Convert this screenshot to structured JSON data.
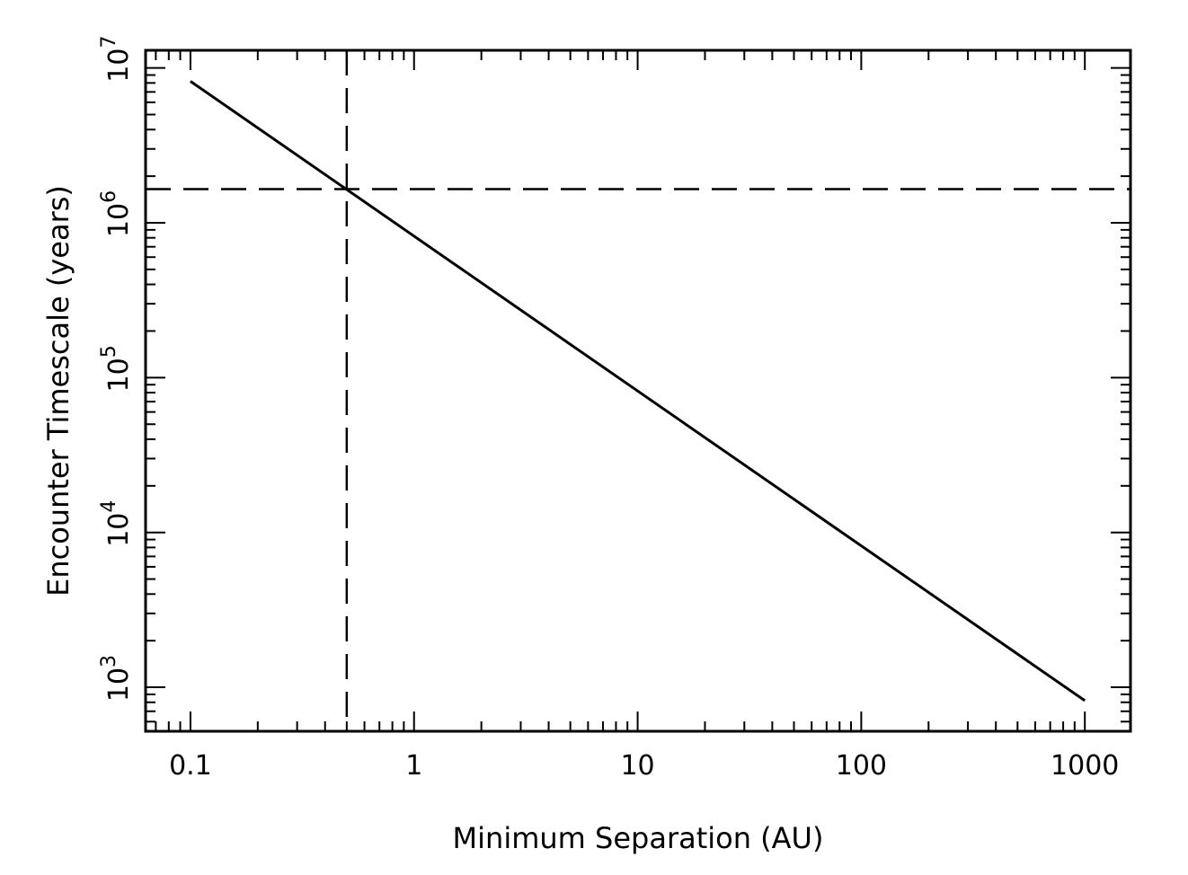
{
  "chart_data": {
    "type": "line",
    "title": "",
    "xlabel": "Minimum Separation (AU)",
    "ylabel": "Encounter Timescale (years)",
    "xscale": "log",
    "yscale": "log",
    "xlim": [
      0.063,
      1600
    ],
    "ylim": [
      520,
      13000000
    ],
    "x_tick_labels": [
      {
        "value": 0.1,
        "label": "0.1"
      },
      {
        "value": 1,
        "label": "1"
      },
      {
        "value": 10,
        "label": "10"
      },
      {
        "value": 100,
        "label": "100"
      },
      {
        "value": 1000,
        "label": "1000"
      }
    ],
    "y_tick_labels": [
      {
        "value": 1000,
        "base": "10",
        "exp": "3"
      },
      {
        "value": 10000,
        "base": "10",
        "exp": "4"
      },
      {
        "value": 100000,
        "base": "10",
        "exp": "5"
      },
      {
        "value": 1000000,
        "base": "10",
        "exp": "6"
      },
      {
        "value": 10000000,
        "base": "10",
        "exp": "7"
      }
    ],
    "series": [
      {
        "x": [
          0.1,
          1000
        ],
        "y": [
          8200000,
          820
        ],
        "style": "solid"
      }
    ],
    "reference_lines": [
      {
        "orientation": "vertical",
        "x": 0.5,
        "style": "dashed"
      },
      {
        "orientation": "horizontal",
        "y": 1650000,
        "style": "dashed"
      }
    ],
    "grid": false,
    "legend": "none",
    "colors": {
      "line": "#000000",
      "axes": "#000000",
      "background": "#ffffff"
    }
  }
}
